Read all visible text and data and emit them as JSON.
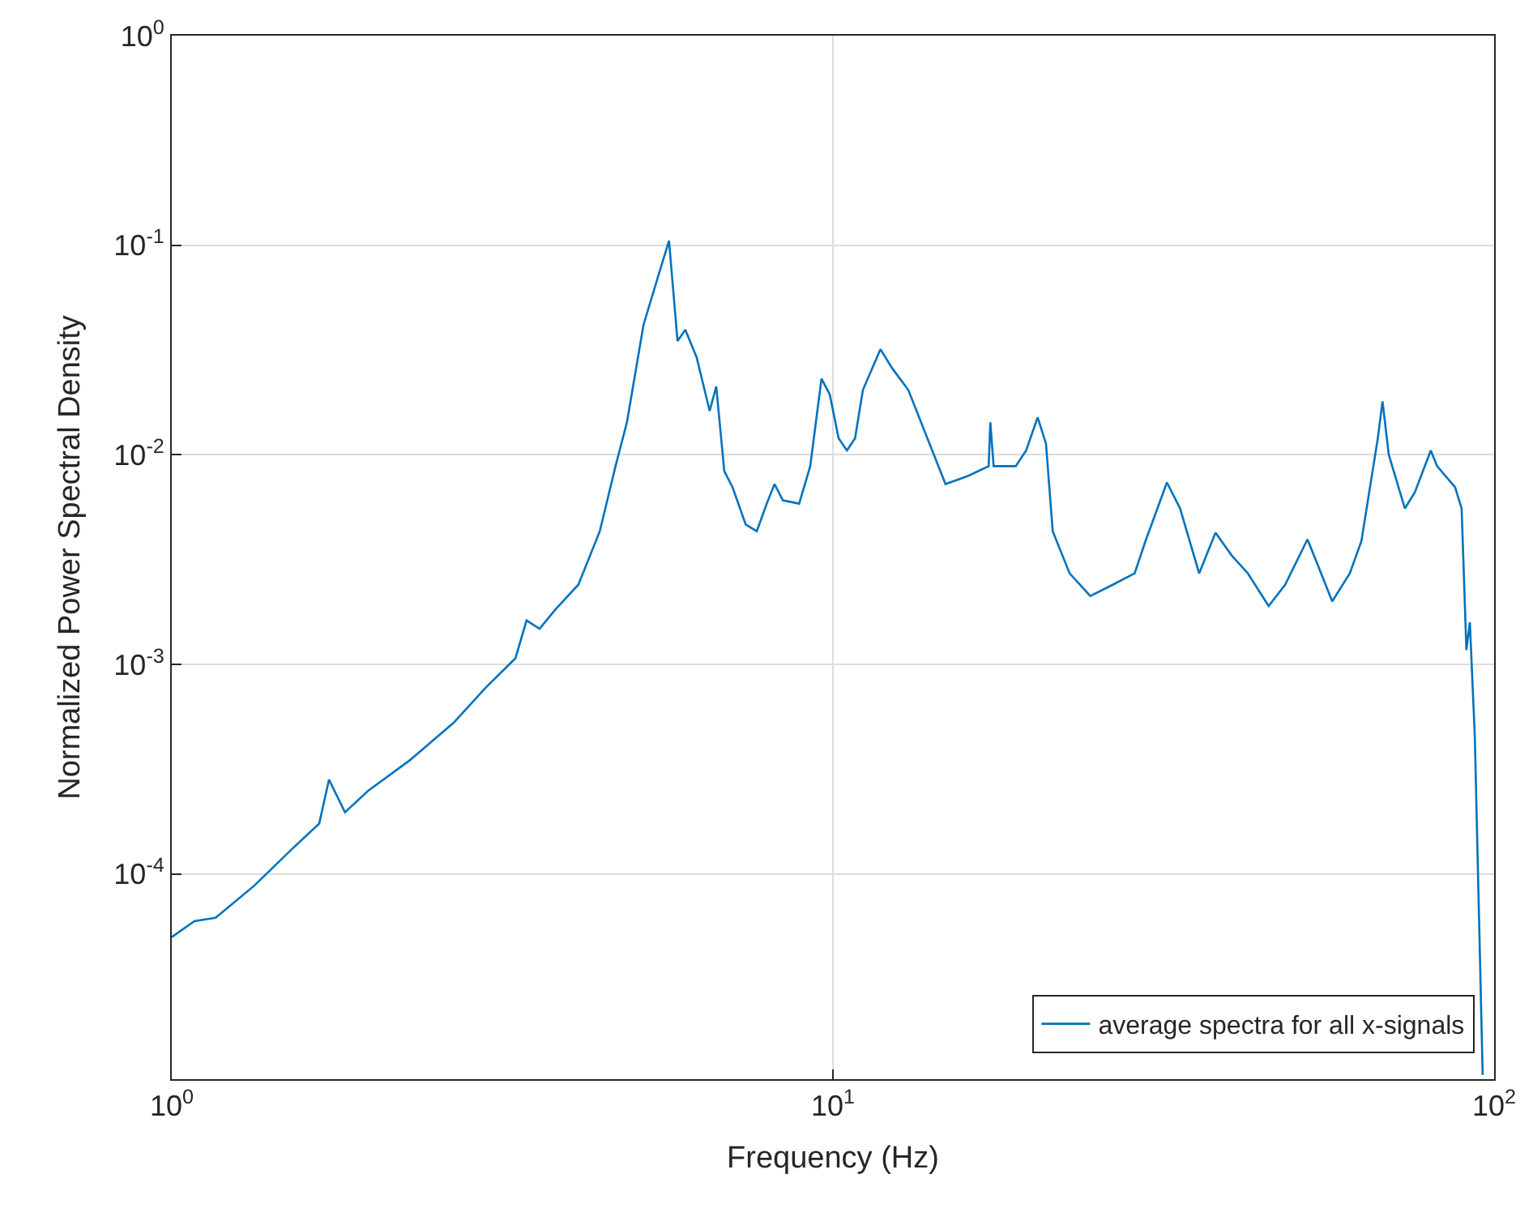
{
  "chart_data": {
    "type": "line",
    "xlabel": "Frequency (Hz)",
    "ylabel": "Normalized Power Spectral Density",
    "log": "xy",
    "grid": true,
    "legend": "bottom right",
    "line_style": "solid",
    "xlim": [
      1,
      100
    ],
    "ylim": [
      1.05e-05,
      1
    ],
    "xticks": [
      {
        "value": 1,
        "label": "10$^{0}$"
      },
      {
        "value": 10,
        "label": "10$^{1}$"
      },
      {
        "value": 100,
        "label": "10$^{2}$"
      }
    ],
    "yticks": [
      {
        "value": 0.0001,
        "label": "10$^{-4}$"
      },
      {
        "value": 0.001,
        "label": "10$^{-3}$"
      },
      {
        "value": 0.01,
        "label": "10$^{-2}$"
      },
      {
        "value": 0.1,
        "label": "10$^{-1}$"
      },
      {
        "value": 1,
        "label": "10$^{0}$"
      }
    ],
    "x": [
      1.0,
      1.082,
      1.165,
      1.334,
      1.518,
      1.671,
      1.729,
      1.828,
      1.98,
      2.291,
      2.667,
      2.987,
      3.31,
      3.44,
      3.6,
      3.81,
      4.12,
      4.44,
      4.69,
      4.88,
      5.17,
      5.47,
      5.65,
      5.82,
      5.98,
      6.22,
      6.51,
      6.66,
      6.85,
      7.05,
      7.38,
      7.67,
      7.94,
      8.16,
      8.4,
      8.89,
      9.24,
      9.61,
      9.89,
      10.2,
      10.5,
      10.8,
      11.1,
      11.8,
      12.3,
      13.0,
      14.0,
      14.8,
      16.0,
      17.2,
      17.3,
      17.5,
      18.9,
      19.6,
      20.4,
      21.0,
      21.5,
      22.8,
      24.5,
      26.5,
      28.6,
      29.7,
      32.0,
      33.5,
      35.8,
      37.9,
      40.1,
      42.4,
      45.6,
      48.3,
      52.2,
      54.0,
      56.9,
      60.5,
      63.0,
      66.7,
      67.8,
      69.3,
      73.3,
      75.9,
      80.2,
      82.0,
      87.3,
      89.3,
      90.8,
      91.9,
      93.5,
      96.1
    ],
    "series": [
      {
        "name": "average spectra for all x-signals",
        "color": "#0072bd",
        "values": [
          5e-05,
          5.96e-05,
          6.18e-05,
          8.82e-05,
          0.000131,
          0.000174,
          0.000282,
          0.000197,
          0.000249,
          0.000349,
          0.000526,
          0.000778,
          0.00107,
          0.00162,
          0.00148,
          0.00184,
          0.0024,
          0.00432,
          0.00883,
          0.0143,
          0.0417,
          0.0752,
          0.105,
          0.0349,
          0.0395,
          0.0292,
          0.0162,
          0.0212,
          0.00836,
          0.007,
          0.00465,
          0.00432,
          0.00585,
          0.00725,
          0.00607,
          0.00585,
          0.00883,
          0.0231,
          0.0194,
          0.012,
          0.0105,
          0.012,
          0.0204,
          0.0319,
          0.0258,
          0.0204,
          0.0113,
          0.00725,
          0.00793,
          0.00883,
          0.0143,
          0.00883,
          0.00883,
          0.0105,
          0.0151,
          0.0113,
          0.00432,
          0.00272,
          0.00212,
          0.0024,
          0.00272,
          0.00388,
          0.00738,
          0.00555,
          0.00272,
          0.00425,
          0.00331,
          0.00272,
          0.0019,
          0.0024,
          0.00395,
          0.00303,
          0.002,
          0.00272,
          0.00388,
          0.012,
          0.018,
          0.01,
          0.00555,
          0.00664,
          0.0105,
          0.00883,
          0.007,
          0.00555,
          0.00117,
          0.00159,
          0.000456,
          1.1e-05
        ]
      }
    ]
  }
}
